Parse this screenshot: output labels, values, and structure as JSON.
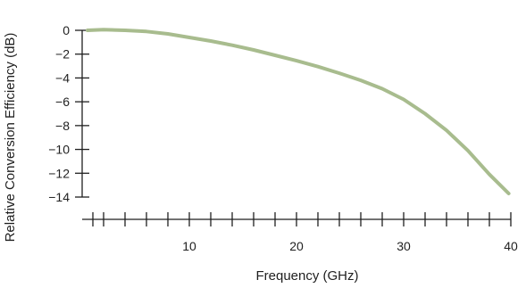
{
  "chart_data": {
    "type": "line",
    "title": "",
    "xlabel": "Frequency (GHz)",
    "ylabel": "Relative Conversion Efficiency (dB)",
    "xlim": [
      0,
      40
    ],
    "ylim": [
      -15,
      0
    ],
    "x_ticks_minor": [
      1,
      2,
      4,
      6,
      8,
      10,
      12,
      14,
      16,
      18,
      20,
      22,
      24,
      26,
      28,
      30,
      32,
      34,
      36,
      38,
      40
    ],
    "x_tick_labels": [
      "10",
      "20",
      "30",
      "40"
    ],
    "x_tick_label_values": [
      10,
      20,
      30,
      40
    ],
    "y_ticks": [
      0,
      -2,
      -4,
      -6,
      -8,
      -10,
      -12,
      -14
    ],
    "y_tick_labels": [
      "0",
      "−2",
      "−4",
      "−6",
      "−8",
      "−10",
      "−12",
      "−14"
    ],
    "grid": false,
    "legend": "none",
    "series": [
      {
        "color": "#a8bc8e",
        "x": [
          0.5,
          2,
          4,
          6,
          8,
          10,
          12,
          14,
          16,
          18,
          20,
          22,
          24,
          26,
          28,
          30,
          32,
          34,
          36,
          38,
          39.8
        ],
        "y": [
          0.0,
          0.05,
          0.0,
          -0.1,
          -0.3,
          -0.6,
          -0.9,
          -1.25,
          -1.65,
          -2.1,
          -2.55,
          -3.05,
          -3.6,
          -4.2,
          -4.9,
          -5.8,
          -7.0,
          -8.4,
          -10.1,
          -12.1,
          -13.7
        ]
      }
    ]
  }
}
